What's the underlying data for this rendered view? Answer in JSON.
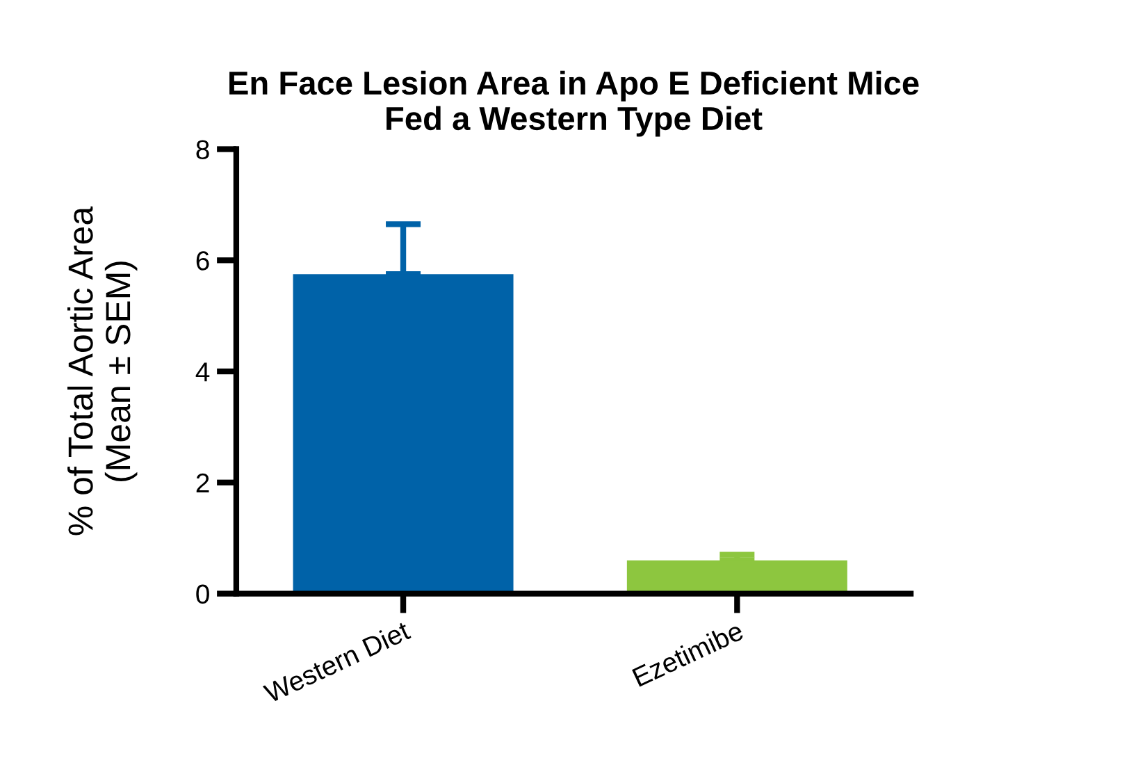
{
  "chart_data": {
    "type": "bar",
    "title": "En Face Lesion Area in Apo E Deficient Mice\nFed a Western Type Diet",
    "ylabel": "% of Total Aortic Area\n(Mean ± SEM)",
    "categories": [
      "Western Diet",
      "Ezetimibe"
    ],
    "values": [
      5.75,
      0.6
    ],
    "colors": [
      "#0062a8",
      "#8dc63f"
    ],
    "errors": [
      [
        5.75,
        6.65
      ],
      [
        0.6,
        0.7
      ]
    ],
    "ylim": [
      0,
      8
    ],
    "yticks": [
      0,
      2,
      4,
      6,
      8
    ],
    "grid": false,
    "legend": false
  }
}
